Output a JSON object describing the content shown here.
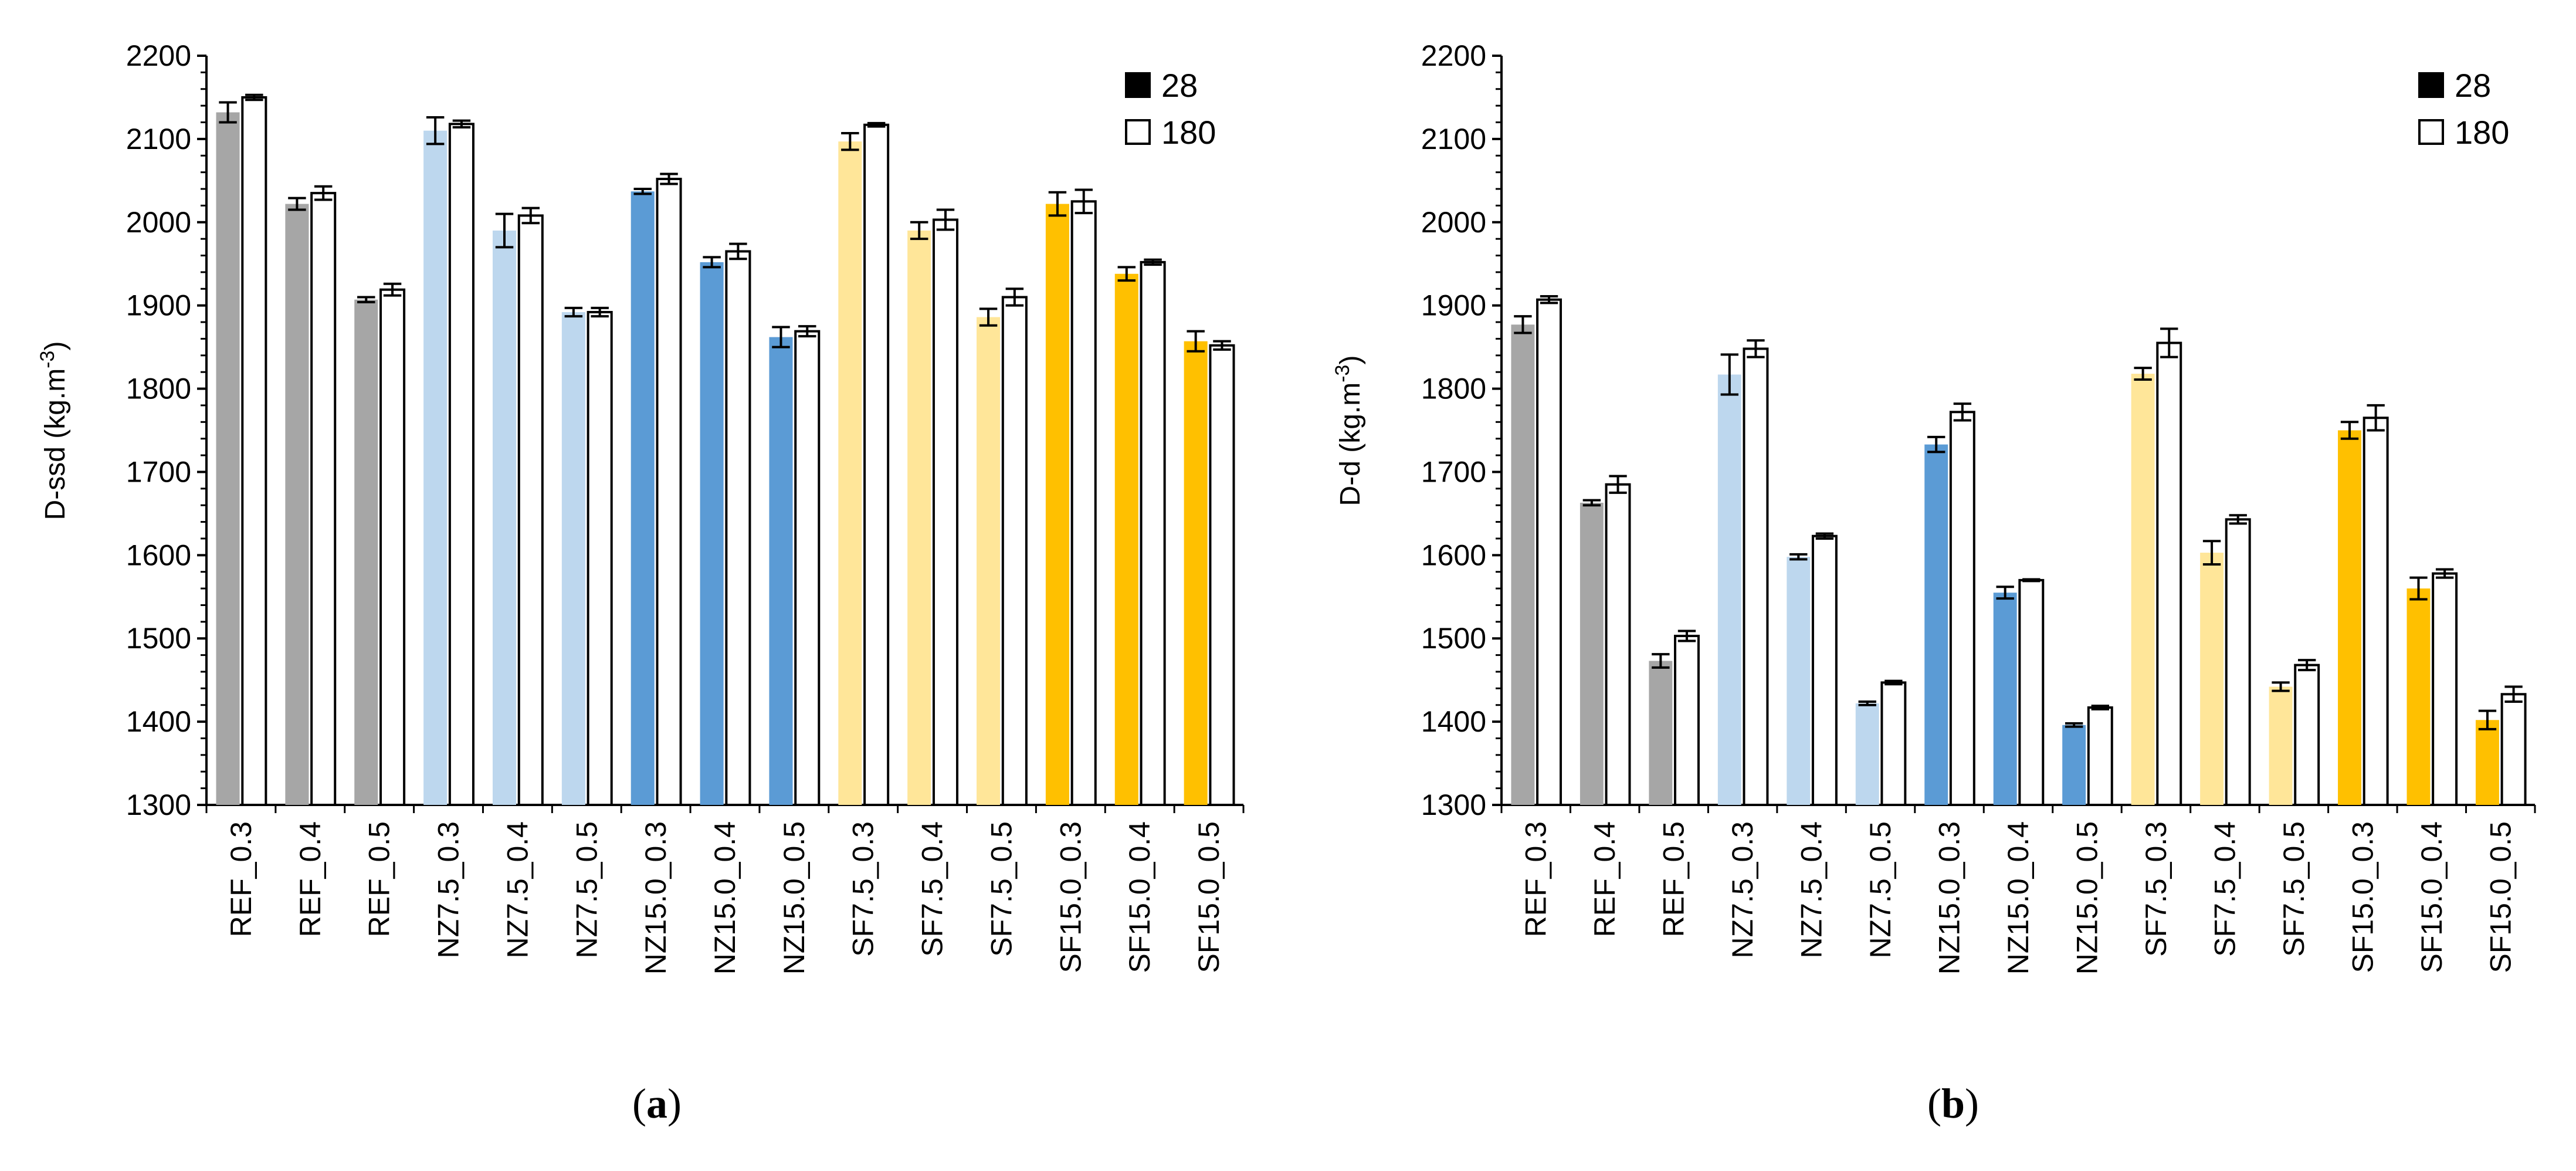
{
  "chart_data": [
    {
      "type": "bar",
      "panel": "a",
      "caption_letter": "a",
      "ylabel": "D-ssd",
      "yunit": "(kg.m",
      "yunit_exp": "-3",
      "yunit_close": ")",
      "ylim": [
        1300,
        2200
      ],
      "ystep": 100,
      "categories": [
        "REF_0.3",
        "REF_0.4",
        "REF_0.5",
        "NZ7.5_0.3",
        "NZ7.5_0.4",
        "NZ7.5_0.5",
        "NZ15.0_0.3",
        "NZ15.0_0.4",
        "NZ15.0_0.5",
        "SF7.5_0.3",
        "SF7.5_0.4",
        "SF7.5_0.5",
        "SF15.0_0.3",
        "SF15.0_0.4",
        "SF15.0_0.5"
      ],
      "category_colors": [
        "#a6a6a6",
        "#a6a6a6",
        "#a6a6a6",
        "#bdd7ee",
        "#bdd7ee",
        "#bdd7ee",
        "#5b9bd5",
        "#5b9bd5",
        "#5b9bd5",
        "#ffe699",
        "#ffe699",
        "#ffe699",
        "#ffc000",
        "#ffc000",
        "#ffc000"
      ],
      "legend_position": "top-right",
      "series": [
        {
          "name": "28",
          "values": [
            2132,
            2022,
            1907,
            2110,
            1990,
            1892,
            2037,
            1952,
            1862,
            2097,
            1990,
            1886,
            2022,
            1938,
            1857
          ],
          "errors": [
            12,
            7,
            3,
            16,
            20,
            5,
            3,
            6,
            12,
            10,
            10,
            10,
            14,
            8,
            12
          ]
        },
        {
          "name": "180",
          "values": [
            2150,
            2035,
            1919,
            2118,
            2008,
            1892,
            2052,
            1965,
            1869,
            2117,
            2003,
            1910,
            2025,
            1952,
            1852
          ],
          "errors": [
            3,
            8,
            7,
            4,
            9,
            5,
            6,
            9,
            6,
            2,
            12,
            10,
            14,
            3,
            5
          ]
        }
      ]
    },
    {
      "type": "bar",
      "panel": "b",
      "caption_letter": "b",
      "ylabel": "D-d",
      "yunit": "(kg.m",
      "yunit_exp": "-3",
      "yunit_close": ")",
      "ylim": [
        1300,
        2200
      ],
      "ystep": 100,
      "categories": [
        "REF_0.3",
        "REF_0.4",
        "REF_0.5",
        "NZ7.5_0.3",
        "NZ7.5_0.4",
        "NZ7.5_0.5",
        "NZ15.0_0.3",
        "NZ15.0_0.4",
        "NZ15.0_0.5",
        "SF7.5_0.3",
        "SF7.5_0.4",
        "SF7.5_0.5",
        "SF15.0_0.3",
        "SF15.0_0.4",
        "SF15.0_0.5"
      ],
      "category_colors": [
        "#a6a6a6",
        "#a6a6a6",
        "#a6a6a6",
        "#bdd7ee",
        "#bdd7ee",
        "#bdd7ee",
        "#5b9bd5",
        "#5b9bd5",
        "#5b9bd5",
        "#ffe699",
        "#ffe699",
        "#ffe699",
        "#ffc000",
        "#ffc000",
        "#ffc000"
      ],
      "legend_position": "top-right",
      "series": [
        {
          "name": "28",
          "values": [
            1877,
            1663,
            1473,
            1817,
            1598,
            1422,
            1733,
            1555,
            1396,
            1818,
            1603,
            1442,
            1750,
            1560,
            1402
          ],
          "errors": [
            10,
            3,
            8,
            24,
            3,
            2,
            9,
            7,
            2,
            7,
            14,
            5,
            10,
            13,
            11
          ]
        },
        {
          "name": "180",
          "values": [
            1907,
            1685,
            1503,
            1848,
            1623,
            1447,
            1772,
            1570,
            1417,
            1855,
            1643,
            1468,
            1765,
            1578,
            1433
          ],
          "errors": [
            4,
            10,
            6,
            10,
            3,
            2,
            10,
            1,
            2,
            17,
            5,
            6,
            15,
            5,
            9
          ]
        }
      ]
    }
  ]
}
